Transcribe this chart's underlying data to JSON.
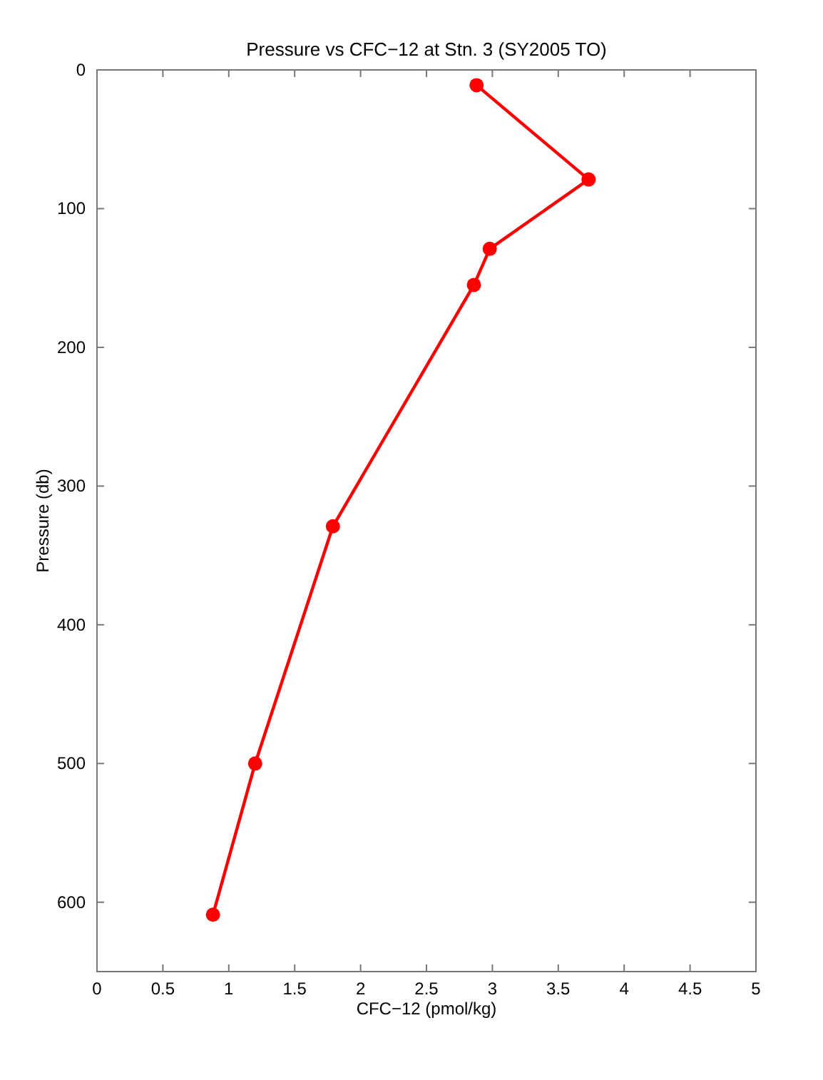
{
  "chart_data": {
    "type": "line",
    "title": "Pressure vs CFC−12 at Stn. 3 (SY2005 TO)",
    "xlabel": "CFC−12 (pmol/kg)",
    "ylabel": "Pressure (db)",
    "series": [
      {
        "x": [
          2.88,
          3.73,
          2.98,
          2.86,
          1.79,
          1.2,
          0.88
        ],
        "values": [
          11,
          79,
          129,
          155,
          329,
          500,
          609
        ],
        "color": "#ff0000"
      }
    ],
    "xlim": [
      0,
      5
    ],
    "xticks": [
      0,
      0.5,
      1,
      1.5,
      2,
      2.5,
      3,
      3.5,
      4,
      4.5,
      5
    ],
    "ylim": [
      650,
      0
    ],
    "yticks": [
      0,
      100,
      200,
      300,
      400,
      500,
      600
    ],
    "marker": "circle",
    "line_style": "solid"
  }
}
